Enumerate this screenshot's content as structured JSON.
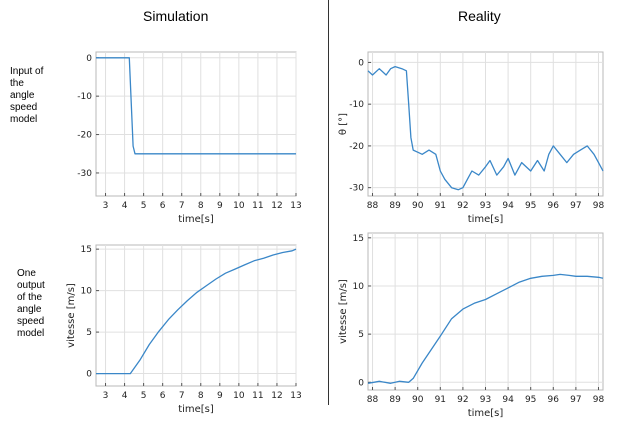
{
  "headers": {
    "left": "Simulation",
    "right": "Reality"
  },
  "row_labels": {
    "top": [
      "Input of",
      "the",
      "angle",
      "speed",
      "model"
    ],
    "bottom": [
      "One",
      "output",
      "of the",
      "angle",
      "speed",
      "model"
    ]
  },
  "colors": {
    "line": "#3a87c8",
    "grid": "#e0e0e0",
    "axis": "#555555",
    "frame": "#b8b8b8",
    "divider": "#333333"
  },
  "chart_data": [
    {
      "type": "line",
      "title": "Simulation",
      "xlabel": "time[s]",
      "ylabel": "",
      "xlim": [
        2.5,
        13
      ],
      "ylim": [
        -36,
        1.5
      ],
      "xticks": [
        3,
        4,
        5,
        6,
        7,
        8,
        9,
        10,
        11,
        12,
        13
      ],
      "yticks": [
        0,
        -10,
        -20,
        -30
      ],
      "series": [
        {
          "x": [
            2.5,
            4.25,
            4.45,
            4.55,
            13
          ],
          "y": [
            0,
            0,
            -23,
            -25,
            -25
          ]
        }
      ]
    },
    {
      "type": "line",
      "title": "Reality",
      "xlabel": "time[s]",
      "ylabel": "θ [°]",
      "xlim": [
        87.8,
        98.2
      ],
      "ylim": [
        -32,
        2.5
      ],
      "xticks": [
        88,
        89,
        90,
        91,
        92,
        93,
        94,
        95,
        96,
        97,
        98
      ],
      "yticks": [
        0,
        -10,
        -20,
        -30
      ],
      "series": [
        {
          "x": [
            87.8,
            88.0,
            88.3,
            88.6,
            88.8,
            89.0,
            89.3,
            89.5,
            89.6,
            89.7,
            89.8,
            90.0,
            90.2,
            90.5,
            90.8,
            91.0,
            91.2,
            91.5,
            91.8,
            92.0,
            92.2,
            92.4,
            92.7,
            93.0,
            93.2,
            93.5,
            93.8,
            94.0,
            94.3,
            94.6,
            95.0,
            95.3,
            95.6,
            95.8,
            96.0,
            96.3,
            96.6,
            96.9,
            97.2,
            97.5,
            97.8,
            98.0,
            98.2
          ],
          "y": [
            -2,
            -3,
            -1.5,
            -3,
            -1.5,
            -1,
            -1.5,
            -2,
            -10,
            -18,
            -21,
            -21.5,
            -22,
            -21,
            -22,
            -26,
            -28,
            -30,
            -30.5,
            -30,
            -28,
            -26,
            -27,
            -25,
            -23.5,
            -27,
            -25,
            -23,
            -27,
            -24,
            -26,
            -23.5,
            -26,
            -22,
            -20,
            -22,
            -24,
            -22,
            -21,
            -20,
            -22,
            -24,
            -26
          ]
        }
      ]
    },
    {
      "type": "line",
      "title": "",
      "xlabel": "time[s]",
      "ylabel": "vitesse [m/s]",
      "xlim": [
        2.5,
        13
      ],
      "ylim": [
        -1.5,
        15.5
      ],
      "xticks": [
        3,
        4,
        5,
        6,
        7,
        8,
        9,
        10,
        11,
        12,
        13
      ],
      "yticks": [
        0,
        5,
        10,
        15
      ],
      "series": [
        {
          "x": [
            2.5,
            4.3,
            4.8,
            5.3,
            5.8,
            6.3,
            6.8,
            7.3,
            7.8,
            8.3,
            8.8,
            9.3,
            9.8,
            10.3,
            10.8,
            11.3,
            11.8,
            12.3,
            12.8,
            13
          ],
          "y": [
            0,
            0,
            1.6,
            3.5,
            5.1,
            6.5,
            7.7,
            8.8,
            9.8,
            10.6,
            11.4,
            12.1,
            12.6,
            13.1,
            13.6,
            13.9,
            14.3,
            14.6,
            14.8,
            15
          ]
        }
      ]
    },
    {
      "type": "line",
      "title": "",
      "xlabel": "time[s]",
      "ylabel": "vitesse [m/s]",
      "xlim": [
        87.8,
        98.2
      ],
      "ylim": [
        -0.8,
        15.5
      ],
      "xticks": [
        88,
        89,
        90,
        91,
        92,
        93,
        94,
        95,
        96,
        97,
        98
      ],
      "yticks": [
        0,
        5,
        10,
        15
      ],
      "series": [
        {
          "x": [
            87.8,
            88.3,
            88.8,
            89.2,
            89.6,
            89.8,
            90.2,
            90.6,
            91.0,
            91.5,
            92.0,
            92.5,
            93.0,
            93.5,
            94.0,
            94.5,
            95.0,
            95.5,
            96.0,
            96.3,
            96.7,
            97.0,
            97.5,
            98.0,
            98.2
          ],
          "y": [
            -0.1,
            0.1,
            -0.1,
            0.1,
            0,
            0.4,
            2,
            3.4,
            4.8,
            6.6,
            7.6,
            8.2,
            8.6,
            9.2,
            9.8,
            10.4,
            10.8,
            11.0,
            11.1,
            11.2,
            11.1,
            11.0,
            11.0,
            10.9,
            10.8
          ]
        }
      ]
    }
  ]
}
